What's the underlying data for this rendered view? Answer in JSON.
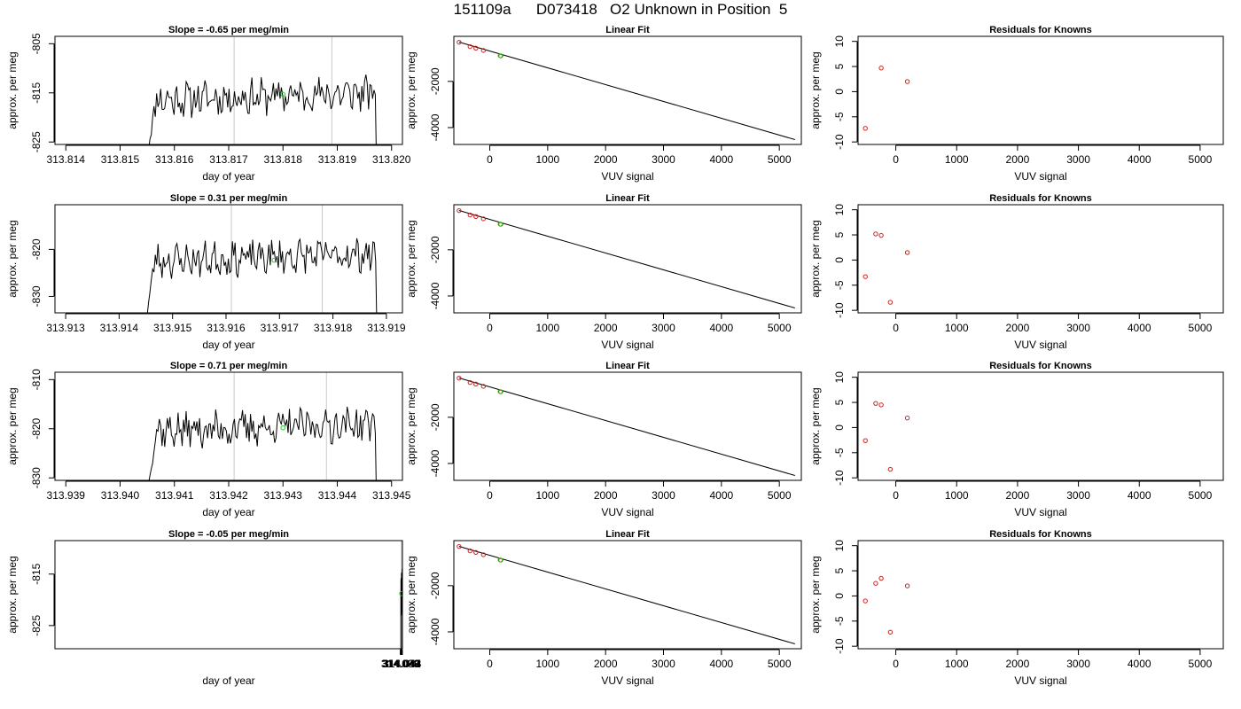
{
  "page_title": "151109a      D073418   O2 Unknown in Position  5",
  "colors": {
    "trace": "#000000",
    "marker_point": "#22cc22",
    "known_points": "#cc2222",
    "fit_line": "#000000",
    "vertical_markers": "#c8c8c8",
    "frame": "#000000"
  },
  "chart_data": [
    {
      "type": "line",
      "title": "Slope =  -0.65  per meg/min",
      "xlabel": "day of year",
      "ylabel": "approx. per meg",
      "xlim": [
        313.8138,
        313.8202
      ],
      "ylim": [
        -825.5,
        -803.5
      ],
      "xticks": [
        "313.814",
        "313.815",
        "313.816",
        "313.817",
        "313.818",
        "313.819",
        "313.820"
      ],
      "xtick_values": [
        313.814,
        313.815,
        313.816,
        313.817,
        313.818,
        313.819,
        313.82
      ],
      "yticks": [
        "-805",
        "-815",
        "-825"
      ],
      "ytick_values": [
        -805,
        -815,
        -825
      ],
      "vlines": [
        313.8171,
        313.8189
      ],
      "trace_start": 313.8155,
      "trace_end": 313.8197,
      "trace_base": -816.5,
      "green_point": [
        313.818,
        -815.3
      ],
      "seed": 11
    },
    {
      "type": "scatter",
      "title": "Linear Fit",
      "xlabel": "VUV signal",
      "ylabel": "approx. per meg",
      "xlim": [
        -620,
        5380
      ],
      "ylim": [
        -4730,
        -50
      ],
      "xticks": [
        "0",
        "1000",
        "2000",
        "3000",
        "4000",
        "5000"
      ],
      "xtick_values": [
        0,
        1000,
        2000,
        3000,
        4000,
        5000
      ],
      "yticks": [
        "-2000",
        "-4000"
      ],
      "ytick_values": [
        -2000,
        -4000
      ],
      "fit_line": [
        [
          -530,
          -300
        ],
        [
          5270,
          -4520
        ]
      ],
      "known_points": [
        [
          -530,
          -305
        ],
        [
          -340,
          -495
        ],
        [
          -240,
          -560
        ],
        [
          -110,
          -660
        ],
        [
          190,
          -895
        ]
      ],
      "green_point": [
        180,
        -885
      ]
    },
    {
      "type": "scatter",
      "title": "Residuals for Knowns",
      "xlabel": "VUV signal",
      "ylabel": "approx. per meg",
      "xlim": [
        -620,
        5380
      ],
      "ylim": [
        -10.5,
        11
      ],
      "xticks": [
        "0",
        "1000",
        "2000",
        "3000",
        "4000",
        "5000"
      ],
      "xtick_values": [
        0,
        1000,
        2000,
        3000,
        4000,
        5000
      ],
      "yticks": [
        "10",
        "5",
        "0",
        "-5",
        "-10"
      ],
      "ytick_values": [
        10,
        5,
        0,
        -5,
        -10
      ],
      "points": [
        [
          -500,
          -7.3
        ],
        [
          -240,
          4.7
        ],
        [
          190,
          2.0
        ]
      ]
    },
    {
      "type": "line",
      "title": "Slope =  0.31  per meg/min",
      "xlabel": "day of year",
      "ylabel": "approx. per meg",
      "xlim": [
        313.9128,
        313.9193
      ],
      "ylim": [
        -833.5,
        -810.5
      ],
      "xticks": [
        "313.913",
        "313.914",
        "313.915",
        "313.916",
        "313.917",
        "313.918",
        "313.919"
      ],
      "xtick_values": [
        313.913,
        313.914,
        313.915,
        313.916,
        313.917,
        313.918,
        313.919
      ],
      "yticks": [
        "-820",
        "-830"
      ],
      "ytick_values": [
        -820,
        -830
      ],
      "vlines": [
        313.9161,
        313.9178
      ],
      "trace_start": 313.9145,
      "trace_end": 313.9188,
      "trace_base": -822.5,
      "green_point": [
        313.9169,
        -822.3
      ],
      "seed": 23
    },
    {
      "type": "scatter",
      "title": "Linear Fit",
      "xlabel": "VUV signal",
      "ylabel": "approx. per meg",
      "xlim": [
        -620,
        5380
      ],
      "ylim": [
        -4730,
        -50
      ],
      "xticks": [
        "0",
        "1000",
        "2000",
        "3000",
        "4000",
        "5000"
      ],
      "xtick_values": [
        0,
        1000,
        2000,
        3000,
        4000,
        5000
      ],
      "yticks": [
        "-2000",
        "-4000"
      ],
      "ytick_values": [
        -2000,
        -4000
      ],
      "fit_line": [
        [
          -530,
          -300
        ],
        [
          5270,
          -4520
        ]
      ],
      "known_points": [
        [
          -530,
          -305
        ],
        [
          -340,
          -495
        ],
        [
          -240,
          -560
        ],
        [
          -110,
          -660
        ],
        [
          190,
          -895
        ]
      ],
      "green_point": [
        180,
        -885
      ]
    },
    {
      "type": "scatter",
      "title": "Residuals for Knowns",
      "xlabel": "VUV signal",
      "ylabel": "approx. per meg",
      "xlim": [
        -620,
        5380
      ],
      "ylim": [
        -10.5,
        11
      ],
      "xticks": [
        "0",
        "1000",
        "2000",
        "3000",
        "4000",
        "5000"
      ],
      "xtick_values": [
        0,
        1000,
        2000,
        3000,
        4000,
        5000
      ],
      "yticks": [
        "10",
        "5",
        "0",
        "-5",
        "-10"
      ],
      "ytick_values": [
        10,
        5,
        0,
        -5,
        -10
      ],
      "points": [
        [
          -500,
          -3.3
        ],
        [
          -330,
          5.2
        ],
        [
          -240,
          4.9
        ],
        [
          -90,
          -8.4
        ],
        [
          190,
          1.5
        ]
      ]
    },
    {
      "type": "line",
      "title": "Slope =  0.71  per meg/min",
      "xlabel": "day of year",
      "ylabel": "approx. per meg",
      "xlim": [
        313.9388,
        313.9452
      ],
      "ylim": [
        -830.5,
        -808.5
      ],
      "xticks": [
        "313.939",
        "313.940",
        "313.941",
        "313.942",
        "313.943",
        "313.944",
        "313.945"
      ],
      "xtick_values": [
        313.939,
        313.94,
        313.941,
        313.942,
        313.943,
        313.944,
        313.945
      ],
      "yticks": [
        "-810",
        "-820",
        "-830"
      ],
      "ytick_values": [
        -810,
        -820,
        -830
      ],
      "vlines": [
        313.9421,
        313.9438
      ],
      "trace_start": 313.9405,
      "trace_end": 313.9447,
      "trace_base": -820.5,
      "green_point": [
        313.943,
        -819.8
      ],
      "seed": 37
    },
    {
      "type": "scatter",
      "title": "Linear Fit",
      "xlabel": "VUV signal",
      "ylabel": "approx. per meg",
      "xlim": [
        -620,
        5380
      ],
      "ylim": [
        -4730,
        -50
      ],
      "xticks": [
        "0",
        "1000",
        "2000",
        "3000",
        "4000",
        "5000"
      ],
      "xtick_values": [
        0,
        1000,
        2000,
        3000,
        4000,
        5000
      ],
      "yticks": [
        "-2000",
        "-4000"
      ],
      "ytick_values": [
        -2000,
        -4000
      ],
      "fit_line": [
        [
          -530,
          -300
        ],
        [
          5270,
          -4520
        ]
      ],
      "known_points": [
        [
          -530,
          -305
        ],
        [
          -340,
          -495
        ],
        [
          -240,
          -560
        ],
        [
          -110,
          -660
        ],
        [
          190,
          -895
        ]
      ],
      "green_point": [
        180,
        -885
      ]
    },
    {
      "type": "scatter",
      "title": "Residuals for Knowns",
      "xlabel": "VUV signal",
      "ylabel": "approx. per meg",
      "xlim": [
        -620,
        5380
      ],
      "ylim": [
        -10.5,
        11
      ],
      "xticks": [
        "0",
        "1000",
        "2000",
        "3000",
        "4000",
        "5000"
      ],
      "xtick_values": [
        0,
        1000,
        2000,
        3000,
        4000,
        5000
      ],
      "yticks": [
        "10",
        "5",
        "0",
        "-5",
        "-10"
      ],
      "ytick_values": [
        10,
        5,
        0,
        -5,
        -10
      ],
      "points": [
        [
          -500,
          -2.6
        ],
        [
          -330,
          4.8
        ],
        [
          -240,
          4.5
        ],
        [
          -90,
          -8.3
        ],
        [
          190,
          1.9
        ]
      ]
    },
    {
      "type": "line",
      "title": "Slope =  -0.05  per meg/min",
      "xlabel": "day of year",
      "ylabel": "approx. per meg",
      "xlim": [
        313.0378,
        314.0442
      ],
      "ylim": [
        -829.5,
        -808.5
      ],
      "xticks": [
        "314.038",
        "314.039",
        "314.040",
        "314.041",
        "314.042",
        "314.043",
        "314.044"
      ],
      "xtick_values": [
        314.038,
        314.039,
        314.04,
        314.041,
        314.042,
        314.043,
        314.044
      ],
      "yticks": [
        "-815",
        "-825"
      ],
      "ytick_values": [
        -815,
        -825
      ],
      "vlines": [
        314.0411,
        314.0428
      ],
      "trace_start": 314.0395,
      "trace_end": 314.0437,
      "trace_base": -819.5,
      "green_point": [
        314.042,
        -818.8
      ],
      "seed": 53
    },
    {
      "type": "scatter",
      "title": "Linear Fit",
      "xlabel": "VUV signal",
      "ylabel": "approx. per meg",
      "xlim": [
        -620,
        5380
      ],
      "ylim": [
        -4730,
        -50
      ],
      "xticks": [
        "0",
        "1000",
        "2000",
        "3000",
        "4000",
        "5000"
      ],
      "xtick_values": [
        0,
        1000,
        2000,
        3000,
        4000,
        5000
      ],
      "yticks": [
        "-2000",
        "-4000"
      ],
      "ytick_values": [
        -2000,
        -4000
      ],
      "fit_line": [
        [
          -530,
          -300
        ],
        [
          5270,
          -4520
        ]
      ],
      "known_points": [
        [
          -530,
          -305
        ],
        [
          -340,
          -495
        ],
        [
          -240,
          -560
        ],
        [
          -110,
          -660
        ],
        [
          190,
          -895
        ]
      ],
      "green_point": [
        180,
        -885
      ]
    },
    {
      "type": "scatter",
      "title": "Residuals for Knowns",
      "xlabel": "VUV signal",
      "ylabel": "approx. per meg",
      "xlim": [
        -620,
        5380
      ],
      "ylim": [
        -10.5,
        11
      ],
      "xticks": [
        "0",
        "1000",
        "2000",
        "3000",
        "4000",
        "5000"
      ],
      "xtick_values": [
        0,
        1000,
        2000,
        3000,
        4000,
        5000
      ],
      "yticks": [
        "10",
        "5",
        "0",
        "-5",
        "-10"
      ],
      "ytick_values": [
        10,
        5,
        0,
        -5,
        -10
      ],
      "points": [
        [
          -500,
          -1.0
        ],
        [
          -330,
          2.5
        ],
        [
          -240,
          3.5
        ],
        [
          -90,
          -7.2
        ],
        [
          190,
          2.0
        ]
      ]
    }
  ]
}
